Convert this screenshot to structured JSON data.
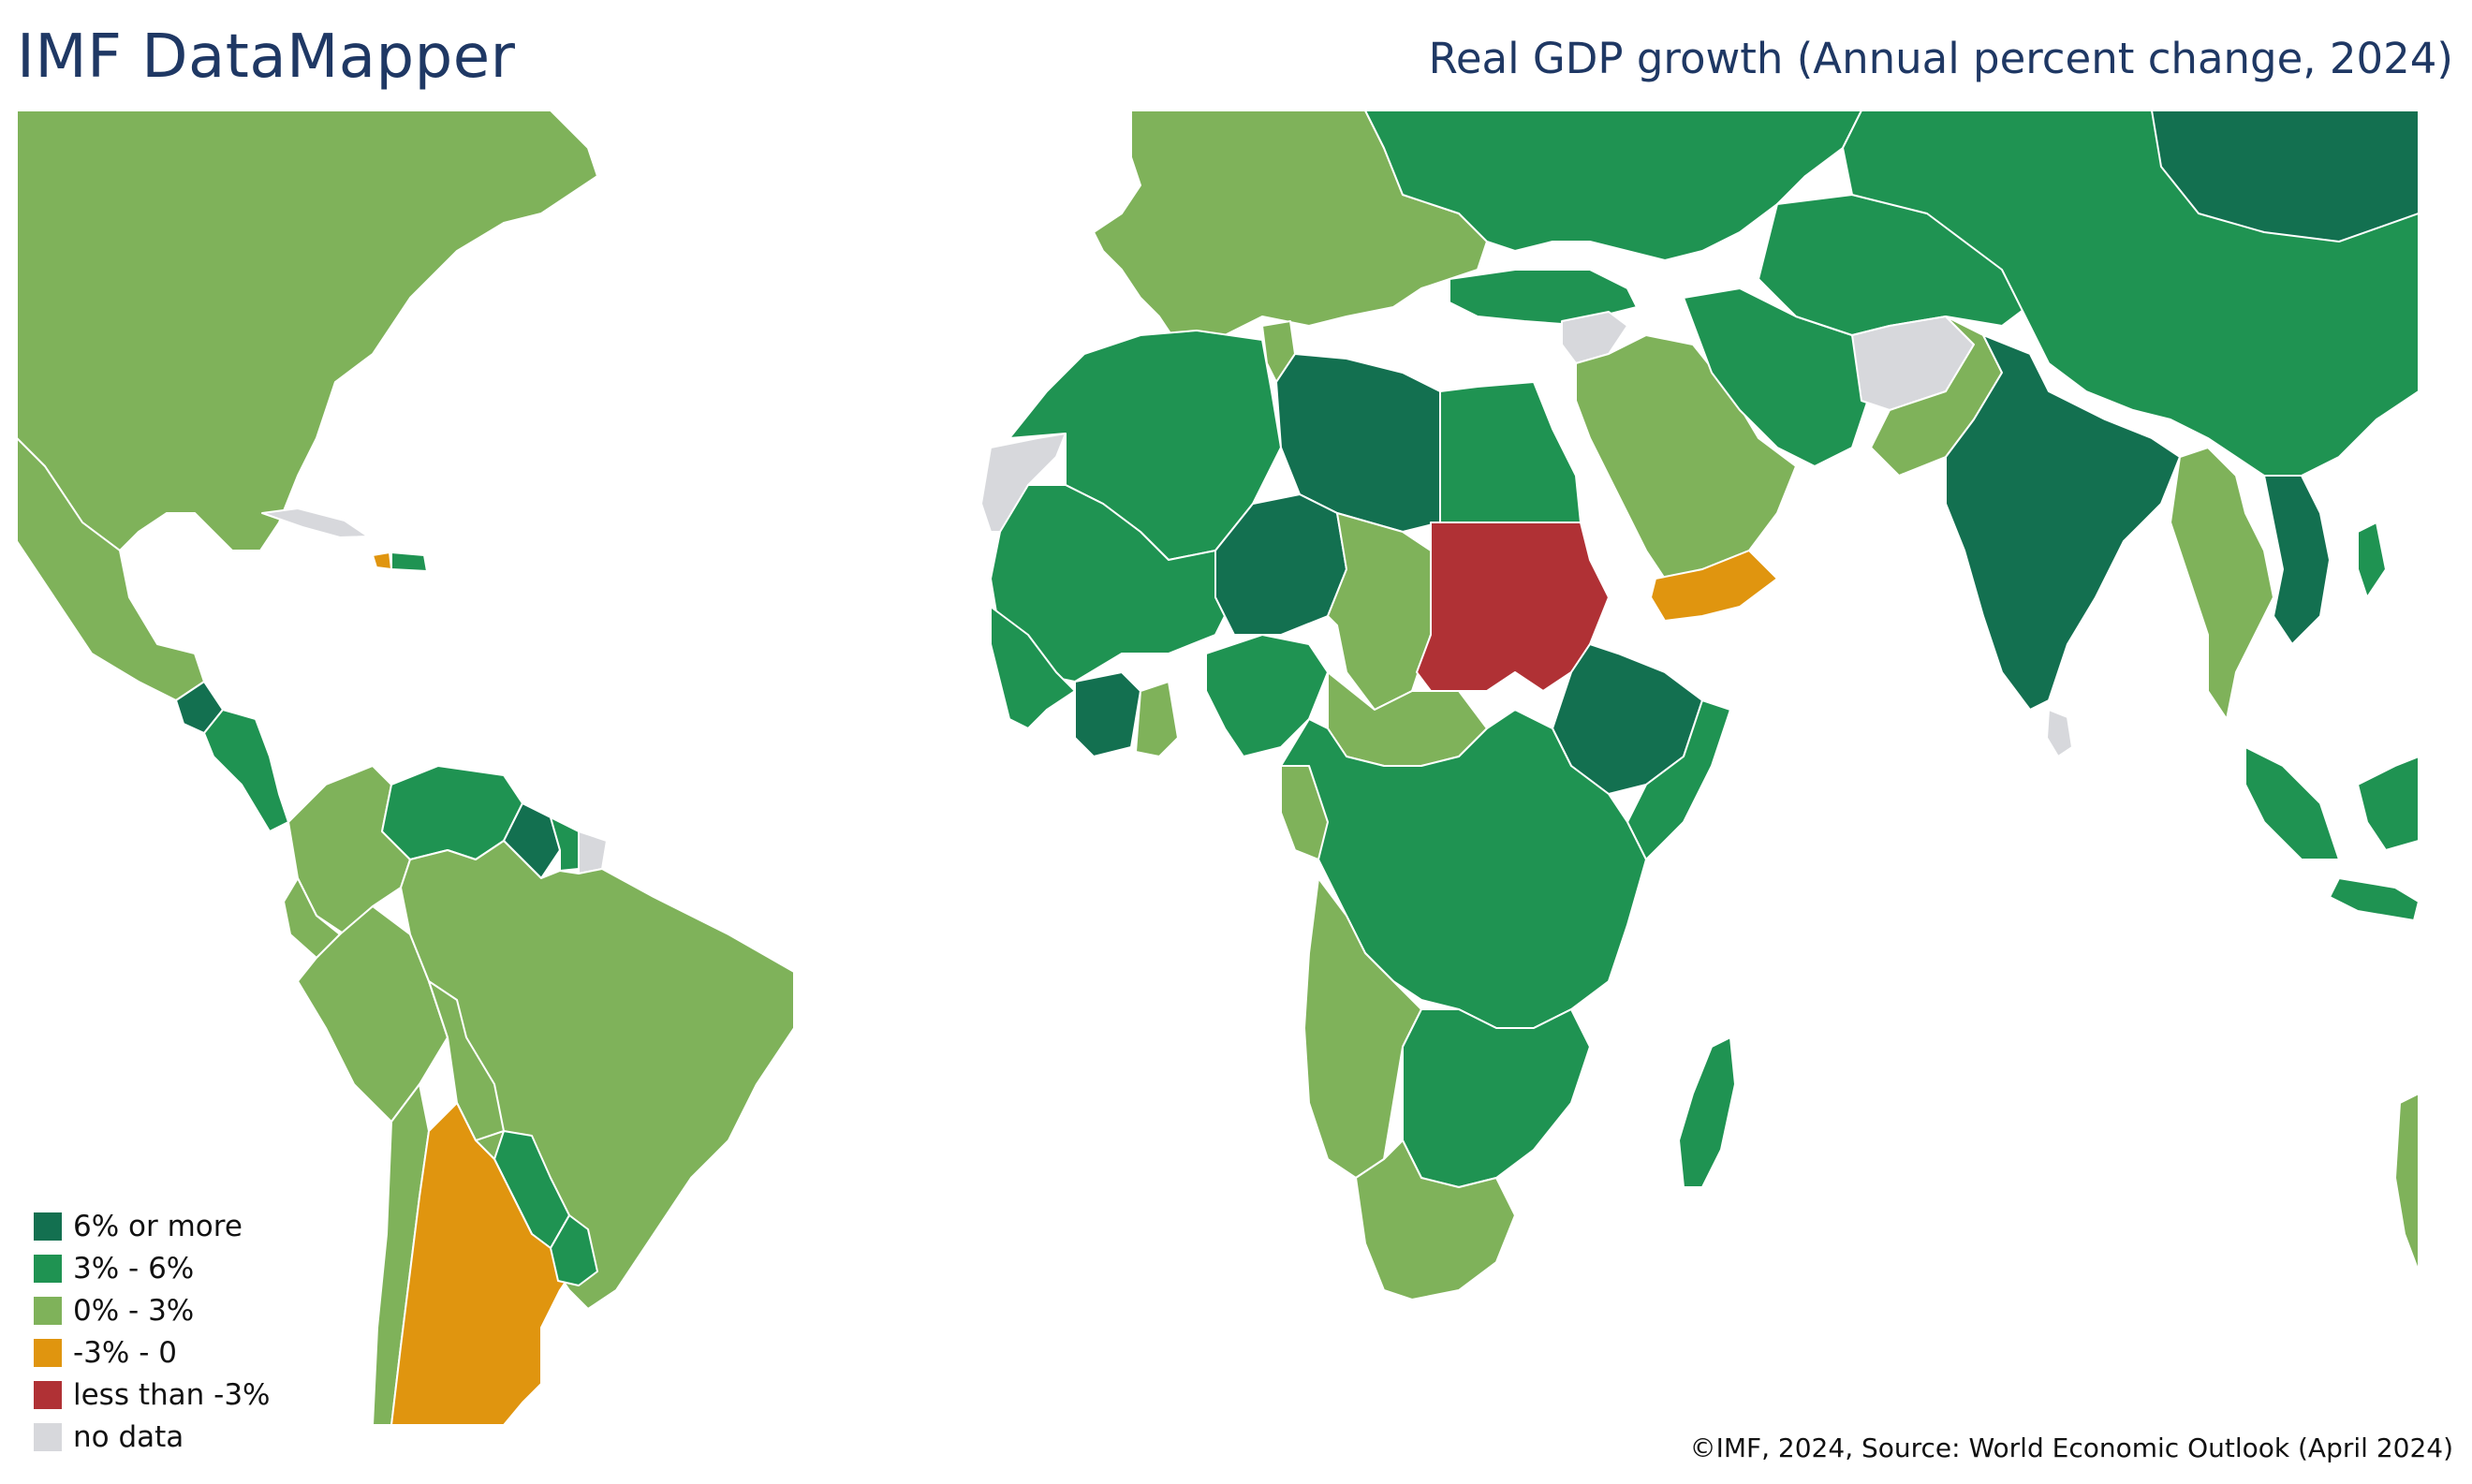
{
  "header": {
    "brand": "IMF DataMapper",
    "indicator": "Real GDP growth (Annual percent change, 2024)"
  },
  "legend": [
    {
      "label": "6% or more",
      "color": "#137050"
    },
    {
      "label": "3% - 6%",
      "color": "#1f9352"
    },
    {
      "label": "0% - 3%",
      "color": "#7fb25a"
    },
    {
      "label": "-3% - 0",
      "color": "#e0950f"
    },
    {
      "label": "less than -3%",
      "color": "#b03135"
    },
    {
      "label": "no data",
      "color": "#d7d8dc"
    }
  ],
  "footer": {
    "credit": "©IMF, 2024, Source: World Economic Outlook (April 2024)"
  },
  "map": {
    "background": "#ffffff",
    "border_color": "#ffffff",
    "regions": [
      {
        "id": "north-america",
        "color": "#7fb25a",
        "band": "0% - 3%"
      },
      {
        "id": "mexico",
        "color": "#7fb25a",
        "band": "0% - 3%"
      },
      {
        "id": "guatemala",
        "color": "#137050",
        "band": "6% or more"
      },
      {
        "id": "central-america",
        "color": "#1f9352",
        "band": "3% - 6%"
      },
      {
        "id": "cuba",
        "color": "#d7d8dc",
        "band": "no data"
      },
      {
        "id": "haiti",
        "color": "#e0950f",
        "band": "-3% - 0"
      },
      {
        "id": "dominican-republic",
        "color": "#1f9352",
        "band": "3% - 6%"
      },
      {
        "id": "colombia",
        "color": "#7fb25a",
        "band": "0% - 3%"
      },
      {
        "id": "venezuela",
        "color": "#1f9352",
        "band": "3% - 6%"
      },
      {
        "id": "guyana",
        "color": "#137050",
        "band": "6% or more"
      },
      {
        "id": "suriname",
        "color": "#1f9352",
        "band": "3% - 6%"
      },
      {
        "id": "french-guiana",
        "color": "#d7d8dc",
        "band": "no data"
      },
      {
        "id": "ecuador",
        "color": "#7fb25a",
        "band": "0% - 3%"
      },
      {
        "id": "peru",
        "color": "#7fb25a",
        "band": "0% - 3%"
      },
      {
        "id": "brazil",
        "color": "#7fb25a",
        "band": "0% - 3%"
      },
      {
        "id": "bolivia",
        "color": "#7fb25a",
        "band": "0% - 3%"
      },
      {
        "id": "paraguay",
        "color": "#1f9352",
        "band": "3% - 6%"
      },
      {
        "id": "chile",
        "color": "#7fb25a",
        "band": "0% - 3%"
      },
      {
        "id": "argentina",
        "color": "#e0950f",
        "band": "-3% - 0"
      },
      {
        "id": "uruguay",
        "color": "#1f9352",
        "band": "3% - 6%"
      },
      {
        "id": "europe",
        "color": "#7fb25a",
        "band": "0% - 3%"
      },
      {
        "id": "russia",
        "color": "#1f9352",
        "band": "3% - 6%"
      },
      {
        "id": "turkey",
        "color": "#1f9352",
        "band": "3% - 6%"
      },
      {
        "id": "western-sahara",
        "color": "#d7d8dc",
        "band": "no data"
      },
      {
        "id": "morocco-algeria",
        "color": "#1f9352",
        "band": "3% - 6%"
      },
      {
        "id": "tunisia",
        "color": "#7fb25a",
        "band": "0% - 3%"
      },
      {
        "id": "libya",
        "color": "#137050",
        "band": "6% or more"
      },
      {
        "id": "egypt",
        "color": "#1f9352",
        "band": "3% - 6%"
      },
      {
        "id": "sahel",
        "color": "#1f9352",
        "band": "3% - 6%"
      },
      {
        "id": "niger",
        "color": "#137050",
        "band": "6% or more"
      },
      {
        "id": "chad",
        "color": "#7fb25a",
        "band": "0% - 3%"
      },
      {
        "id": "sudan",
        "color": "#b03135",
        "band": "less than -3%"
      },
      {
        "id": "ethiopia",
        "color": "#137050",
        "band": "6% or more"
      },
      {
        "id": "somalia",
        "color": "#1f9352",
        "band": "3% - 6%"
      },
      {
        "id": "west-africa-coast",
        "color": "#1f9352",
        "band": "3% - 6%"
      },
      {
        "id": "cote-divoire",
        "color": "#137050",
        "band": "6% or more"
      },
      {
        "id": "ghana",
        "color": "#7fb25a",
        "band": "0% - 3%"
      },
      {
        "id": "nigeria",
        "color": "#1f9352",
        "band": "3% - 6%"
      },
      {
        "id": "central-african-republic",
        "color": "#7fb25a",
        "band": "0% - 3%"
      },
      {
        "id": "central-east-africa",
        "color": "#1f9352",
        "band": "3% - 6%"
      },
      {
        "id": "gabon",
        "color": "#7fb25a",
        "band": "0% - 3%"
      },
      {
        "id": "angola-namibia",
        "color": "#7fb25a",
        "band": "0% - 3%"
      },
      {
        "id": "southern-africa",
        "color": "#1f9352",
        "band": "3% - 6%"
      },
      {
        "id": "south-africa",
        "color": "#7fb25a",
        "band": "0% - 3%"
      },
      {
        "id": "madagascar",
        "color": "#1f9352",
        "band": "3% - 6%"
      },
      {
        "id": "middle-east",
        "color": "#7fb25a",
        "band": "0% - 3%"
      },
      {
        "id": "syria",
        "color": "#d7d8dc",
        "band": "no data"
      },
      {
        "id": "yemen",
        "color": "#e0950f",
        "band": "-3% - 0"
      },
      {
        "id": "iran",
        "color": "#1f9352",
        "band": "3% - 6%"
      },
      {
        "id": "afghanistan",
        "color": "#d7d8dc",
        "band": "no data"
      },
      {
        "id": "pakistan",
        "color": "#7fb25a",
        "band": "0% - 3%"
      },
      {
        "id": "central-asia",
        "color": "#1f9352",
        "band": "3% - 6%"
      },
      {
        "id": "india",
        "color": "#137050",
        "band": "6% or more"
      },
      {
        "id": "sri-lanka",
        "color": "#d7d8dc",
        "band": "no data"
      },
      {
        "id": "china",
        "color": "#1f9352",
        "band": "3% - 6%"
      },
      {
        "id": "mongolia",
        "color": "#137050",
        "band": "6% or more"
      },
      {
        "id": "myanmar-thailand",
        "color": "#7fb25a",
        "band": "0% - 3%"
      },
      {
        "id": "cambodia-vietnam",
        "color": "#137050",
        "band": "6% or more"
      },
      {
        "id": "indonesia",
        "color": "#1f9352",
        "band": "3% - 6%"
      },
      {
        "id": "philippines",
        "color": "#1f9352",
        "band": "3% - 6%"
      },
      {
        "id": "australia",
        "color": "#7fb25a",
        "band": "0% - 3%"
      }
    ]
  }
}
